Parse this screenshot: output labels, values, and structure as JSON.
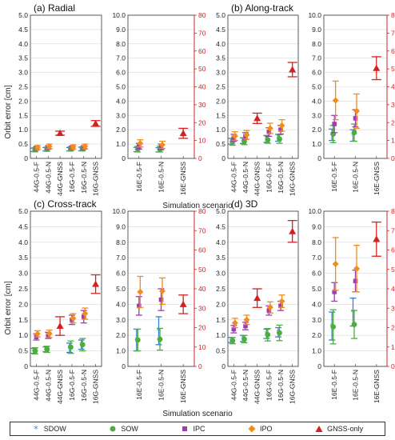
{
  "figure": {
    "ylabel": "Orbit error [cm]",
    "xlabel": "Simulation scenario"
  },
  "legend": {
    "items": [
      {
        "key": "SDOW",
        "label": "SDOW",
        "color": "#3a7fd5",
        "marker": "star"
      },
      {
        "key": "SOW",
        "label": "SOW",
        "color": "#4caf3c",
        "marker": "circle"
      },
      {
        "key": "IPC",
        "label": "IPC",
        "color": "#9b3fb0",
        "marker": "square"
      },
      {
        "key": "IPO",
        "label": "IPO",
        "color": "#f28c1b",
        "marker": "diamond"
      },
      {
        "key": "GNSS",
        "label": "GNSS-only",
        "color": "#d62020",
        "marker": "triangle"
      }
    ]
  },
  "chart_data": [
    {
      "type": "scatter",
      "title": "(a) Radial",
      "left_axis": {
        "ylim": [
          0,
          5.0
        ],
        "ticks": [
          "0",
          "0.5",
          "1.0",
          "1.5",
          "2.0",
          "2.5",
          "3.0",
          "3.5",
          "4.0",
          "4.5",
          "5.0"
        ]
      },
      "right_axis": null,
      "categories": [
        "44G-0.5-F",
        "44G-0.5-N",
        "44G-GNSS",
        "16G-0.5-F",
        "16G-0.5-N",
        "16G-GNSS"
      ],
      "series": [
        {
          "name": "SDOW",
          "values": [
            0.3,
            0.32,
            null,
            0.32,
            0.33,
            null
          ],
          "err": [
            0.06,
            0.06,
            null,
            0.06,
            0.06,
            null
          ]
        },
        {
          "name": "SOW",
          "values": [
            0.3,
            0.32,
            null,
            0.33,
            0.33,
            null
          ],
          "err": [
            0.07,
            0.07,
            null,
            0.07,
            0.07,
            null
          ]
        },
        {
          "name": "IPC",
          "values": [
            0.35,
            0.38,
            null,
            0.37,
            0.38,
            null
          ],
          "err": [
            0.06,
            0.06,
            null,
            0.06,
            0.06,
            null
          ]
        },
        {
          "name": "IPO",
          "values": [
            0.38,
            0.42,
            null,
            0.4,
            0.42,
            null
          ],
          "err": [
            0.07,
            0.08,
            null,
            0.07,
            0.08,
            null
          ]
        },
        {
          "name": "GNSS",
          "values": [
            null,
            null,
            0.88,
            null,
            null,
            1.22
          ],
          "err": [
            null,
            null,
            0.07,
            null,
            null,
            0.1
          ]
        }
      ]
    },
    {
      "type": "scatter",
      "title": "",
      "left_axis": {
        "ylim": [
          0,
          10.0
        ],
        "ticks": [
          "0",
          "1.0",
          "2.0",
          "3.0",
          "4.0",
          "5.0",
          "6.0",
          "7.0",
          "8.0",
          "9.0",
          "10.0"
        ]
      },
      "right_axis": {
        "ylim": [
          0,
          80
        ],
        "ticks": [
          "0",
          "10",
          "20",
          "30",
          "40",
          "50",
          "60",
          "70",
          "80"
        ]
      },
      "categories": [
        "16E-0.5-F",
        "16E-0.5-N",
        "16E-GNSS"
      ],
      "series": [
        {
          "name": "SDOW",
          "values": [
            0.62,
            0.6,
            null
          ],
          "err": [
            0.15,
            0.15,
            null
          ]
        },
        {
          "name": "SOW",
          "values": [
            0.65,
            0.65,
            null
          ],
          "err": [
            0.2,
            0.2,
            null
          ]
        },
        {
          "name": "IPC",
          "values": [
            0.85,
            0.8,
            null
          ],
          "err": [
            0.2,
            0.2,
            null
          ]
        },
        {
          "name": "IPO",
          "values": [
            1.05,
            0.95,
            null
          ],
          "err": [
            0.25,
            0.25,
            null
          ]
        },
        {
          "name": "GNSS",
          "values": [
            null,
            null,
            1.75
          ],
          "err": [
            null,
            null,
            0.35
          ]
        }
      ]
    },
    {
      "type": "scatter",
      "title": "(b) Along-track",
      "left_axis": {
        "ylim": [
          0,
          5.0
        ],
        "ticks": [
          "0",
          "0.5",
          "1.0",
          "1.5",
          "2.0",
          "2.5",
          "3.0",
          "3.5",
          "4.0",
          "4.5",
          "5.0"
        ]
      },
      "right_axis": null,
      "categories": [
        "44G-0.5-F",
        "44G-0.5-N",
        "44G-GNSS",
        "16G-0.5-F",
        "16G-0.5-N",
        "16G-GNSS"
      ],
      "series": [
        {
          "name": "SDOW",
          "values": [
            0.6,
            0.62,
            null,
            0.68,
            0.72,
            null
          ],
          "err": [
            0.1,
            0.1,
            null,
            0.12,
            0.12,
            null
          ]
        },
        {
          "name": "SOW",
          "values": [
            0.58,
            0.6,
            null,
            0.65,
            0.68,
            null
          ],
          "err": [
            0.12,
            0.12,
            null,
            0.12,
            0.15,
            null
          ]
        },
        {
          "name": "IPC",
          "values": [
            0.72,
            0.78,
            null,
            0.92,
            1.0,
            null
          ],
          "err": [
            0.12,
            0.12,
            null,
            0.15,
            0.15,
            null
          ]
        },
        {
          "name": "IPO",
          "values": [
            0.78,
            0.82,
            null,
            1.05,
            1.15,
            null
          ],
          "err": [
            0.15,
            0.15,
            null,
            0.18,
            0.2,
            null
          ]
        },
        {
          "name": "GNSS",
          "values": [
            null,
            null,
            1.4,
            null,
            null,
            3.1
          ],
          "err": [
            null,
            null,
            0.18,
            null,
            null,
            0.25
          ]
        }
      ]
    },
    {
      "type": "scatter",
      "title": "",
      "left_axis": {
        "ylim": [
          0,
          10.0
        ],
        "ticks": [
          "0",
          "1.0",
          "2.0",
          "3.0",
          "4.0",
          "5.0",
          "6.0",
          "7.0",
          "8.0",
          "9.0",
          "10.0"
        ]
      },
      "right_axis": {
        "ylim": [
          0,
          80
        ],
        "ticks": [
          "0",
          "10",
          "20",
          "30",
          "40",
          "50",
          "60",
          "70",
          "80"
        ]
      },
      "categories": [
        "16E-0.5-F",
        "16E-0.5-N",
        "16E-GNSS"
      ],
      "series": [
        {
          "name": "SDOW",
          "values": [
            1.65,
            1.6,
            null
          ],
          "err": [
            0.4,
            0.4,
            null
          ]
        },
        {
          "name": "SOW",
          "values": [
            1.7,
            1.8,
            null
          ],
          "err": [
            0.6,
            0.6,
            null
          ]
        },
        {
          "name": "IPC",
          "values": [
            2.4,
            2.8,
            null
          ],
          "err": [
            0.6,
            0.6,
            null
          ]
        },
        {
          "name": "IPO",
          "values": [
            4.05,
            3.3,
            null
          ],
          "err": [
            1.35,
            1.2,
            null
          ]
        },
        {
          "name": "GNSS",
          "values": [
            null,
            null,
            6.3
          ],
          "err": [
            null,
            null,
            0.8
          ]
        }
      ]
    },
    {
      "type": "scatter",
      "title": "(c) Cross-track",
      "left_axis": {
        "ylim": [
          0,
          5.0
        ],
        "ticks": [
          "0",
          "0.5",
          "1.0",
          "1.5",
          "2.0",
          "2.5",
          "3.0",
          "3.5",
          "4.0",
          "4.5",
          "5.0"
        ]
      },
      "right_axis": null,
      "categories": [
        "44G-0.5-F",
        "44G-0.5-N",
        "44G-GNSS",
        "16G-0.5-F",
        "16G-0.5-N",
        "16G-GNSS"
      ],
      "series": [
        {
          "name": "SDOW",
          "values": [
            0.5,
            0.55,
            null,
            0.6,
            0.7,
            null
          ],
          "err": [
            0.08,
            0.08,
            null,
            0.15,
            0.15,
            null
          ]
        },
        {
          "name": "SOW",
          "values": [
            0.5,
            0.55,
            null,
            0.62,
            0.7,
            null
          ],
          "err": [
            0.1,
            0.1,
            null,
            0.2,
            0.2,
            null
          ]
        },
        {
          "name": "IPC",
          "values": [
            0.95,
            1.0,
            null,
            1.5,
            1.6,
            null
          ],
          "err": [
            0.1,
            0.1,
            null,
            0.15,
            0.2,
            null
          ]
        },
        {
          "name": "IPO",
          "values": [
            1.05,
            1.05,
            null,
            1.55,
            1.7,
            null
          ],
          "err": [
            0.1,
            0.12,
            null,
            0.15,
            0.18,
            null
          ]
        },
        {
          "name": "GNSS",
          "values": [
            null,
            null,
            1.3,
            null,
            null,
            2.65
          ],
          "err": [
            null,
            null,
            0.3,
            null,
            null,
            0.3
          ]
        }
      ]
    },
    {
      "type": "scatter",
      "title": "",
      "left_axis": {
        "ylim": [
          0,
          10.0
        ],
        "ticks": [
          "0",
          "1.0",
          "2.0",
          "3.0",
          "4.0",
          "5.0",
          "6.0",
          "7.0",
          "8.0",
          "9.0",
          "10.0"
        ]
      },
      "right_axis": {
        "ylim": [
          0,
          80
        ],
        "ticks": [
          "0",
          "10",
          "20",
          "30",
          "40",
          "50",
          "60",
          "70",
          "80"
        ]
      },
      "categories": [
        "16E-0.5-F",
        "16E-0.5-N",
        "16E-GNSS"
      ],
      "series": [
        {
          "name": "SDOW",
          "values": [
            1.7,
            2.3,
            null
          ],
          "err": [
            0.7,
            0.9,
            null
          ]
        },
        {
          "name": "SOW",
          "values": [
            1.7,
            1.75,
            null
          ],
          "err": [
            0.7,
            0.7,
            null
          ]
        },
        {
          "name": "IPC",
          "values": [
            3.9,
            4.3,
            null
          ],
          "err": [
            0.6,
            0.7,
            null
          ]
        },
        {
          "name": "IPO",
          "values": [
            4.8,
            4.85,
            null
          ],
          "err": [
            1.0,
            0.85,
            null
          ]
        },
        {
          "name": "GNSS",
          "values": [
            null,
            null,
            4.0
          ],
          "err": [
            null,
            null,
            0.6
          ]
        }
      ]
    },
    {
      "type": "scatter",
      "title": "(d) 3D",
      "left_axis": {
        "ylim": [
          0,
          5.0
        ],
        "ticks": [
          "0",
          "0.5",
          "1.0",
          "1.5",
          "2.0",
          "2.5",
          "3.0",
          "3.5",
          "4.0",
          "4.5",
          "5.0"
        ]
      },
      "right_axis": null,
      "categories": [
        "44G-0.5-F",
        "44G-0.5-N",
        "44G-GNSS",
        "16G-0.5-F",
        "16G-0.5-N",
        "16G-GNSS"
      ],
      "series": [
        {
          "name": "SDOW",
          "values": [
            0.85,
            0.9,
            null,
            1.05,
            1.1,
            null
          ],
          "err": [
            0.08,
            0.1,
            null,
            0.15,
            0.15,
            null
          ]
        },
        {
          "name": "SOW",
          "values": [
            0.83,
            0.88,
            null,
            1.02,
            1.08,
            null
          ],
          "err": [
            0.1,
            0.12,
            null,
            0.2,
            0.25,
            null
          ]
        },
        {
          "name": "IPC",
          "values": [
            1.2,
            1.3,
            null,
            1.8,
            1.95,
            null
          ],
          "err": [
            0.12,
            0.12,
            null,
            0.15,
            0.15,
            null
          ]
        },
        {
          "name": "IPO",
          "values": [
            1.4,
            1.5,
            null,
            1.9,
            2.1,
            null
          ],
          "err": [
            0.15,
            0.15,
            null,
            0.18,
            0.2,
            null
          ]
        },
        {
          "name": "GNSS",
          "values": [
            null,
            null,
            2.2,
            null,
            null,
            4.35
          ],
          "err": [
            null,
            null,
            0.3,
            null,
            null,
            0.35
          ]
        }
      ]
    },
    {
      "type": "scatter",
      "title": "",
      "left_axis": {
        "ylim": [
          0,
          10.0
        ],
        "ticks": [
          "0",
          "1.0",
          "2.0",
          "3.0",
          "4.0",
          "5.0",
          "6.0",
          "7.0",
          "8.0",
          "9.0",
          "10.0"
        ]
      },
      "right_axis": {
        "ylim": [
          0,
          80
        ],
        "ticks": [
          "0",
          "10",
          "20",
          "30",
          "40",
          "50",
          "60",
          "70",
          "80"
        ]
      },
      "categories": [
        "16E-0.5-F",
        "16E-0.5-N",
        "16E-GNSS"
      ],
      "series": [
        {
          "name": "SDOW",
          "values": [
            2.6,
            3.5,
            null
          ],
          "err": [
            0.9,
            0.9,
            null
          ]
        },
        {
          "name": "SOW",
          "values": [
            2.55,
            2.7,
            null
          ],
          "err": [
            1.1,
            0.9,
            null
          ]
        },
        {
          "name": "IPC",
          "values": [
            4.8,
            5.5,
            null
          ],
          "err": [
            0.6,
            0.7,
            null
          ]
        },
        {
          "name": "IPO",
          "values": [
            6.6,
            6.3,
            null
          ],
          "err": [
            1.7,
            1.5,
            null
          ]
        },
        {
          "name": "GNSS",
          "values": [
            null,
            null,
            8.2
          ],
          "err": [
            null,
            null,
            1.1
          ]
        }
      ]
    }
  ]
}
